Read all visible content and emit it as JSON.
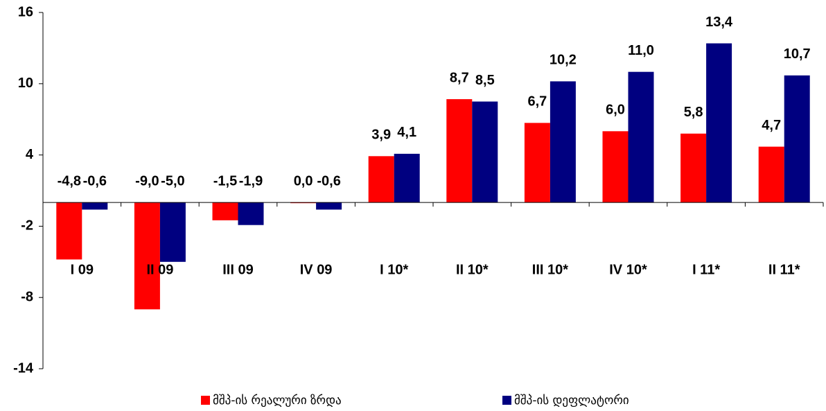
{
  "chart_data": {
    "type": "bar",
    "categories": [
      "I 09",
      "II 09",
      "III 09",
      "IV 09",
      "I 10*",
      "II 10*",
      "III 10*",
      "IV 10*",
      "I 11*",
      "II 11*"
    ],
    "series": [
      {
        "name": "მშპ-ის რეალური ზრდა",
        "color": "#ff0000",
        "values": [
          -4.8,
          -9.0,
          -1.5,
          0.0,
          3.9,
          8.7,
          6.7,
          6.0,
          5.8,
          4.7
        ],
        "value_labels": [
          "-4,8",
          "-9,0",
          "-1,5",
          "0,0",
          "3,9",
          "8,7",
          "6,7",
          "6,0",
          "5,8",
          "4,7"
        ]
      },
      {
        "name": "მშპ-ის დეფლატორი",
        "color": "#000080",
        "values": [
          -0.6,
          -5.0,
          -1.9,
          -0.6,
          4.1,
          8.5,
          10.2,
          11.0,
          13.4,
          10.7
        ],
        "value_labels": [
          "-0,6",
          "-5,0",
          "-1,9",
          "-0,6",
          "4,1",
          "8,5",
          "10,2",
          "11,0",
          "13,4",
          "10,7"
        ]
      }
    ],
    "ylim": [
      -14,
      16
    ],
    "yticks": [
      -14,
      -8,
      -2,
      4,
      10,
      16
    ],
    "grid": false,
    "legend": "bottom"
  }
}
